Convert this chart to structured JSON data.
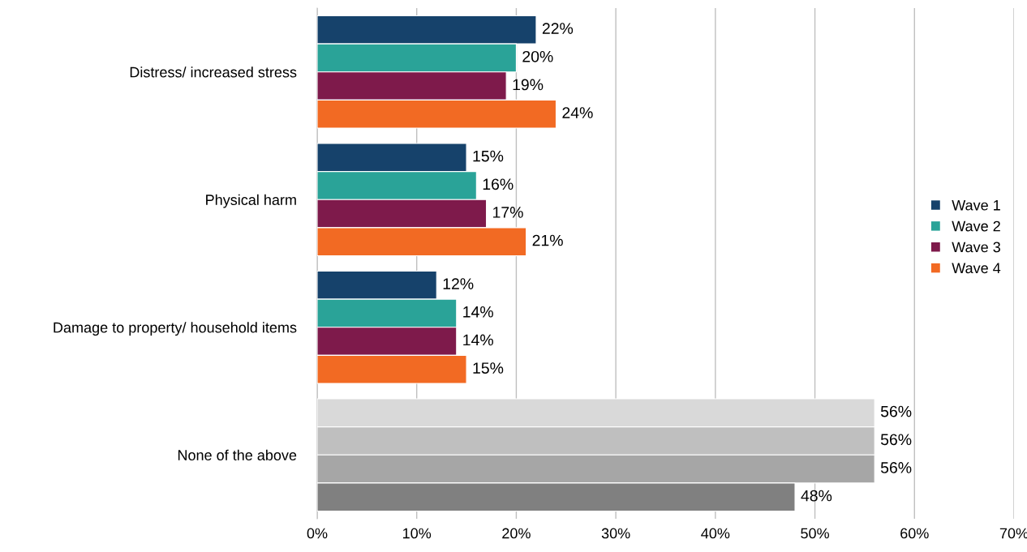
{
  "chart_data": {
    "type": "bar",
    "orientation": "horizontal",
    "categories": [
      "Distress/ increased stress",
      "Physical harm",
      "Damage to property/ household items",
      "None of the above"
    ],
    "series": [
      {
        "name": "Wave 1",
        "color": "#16426b",
        "colors": [
          "#16426b",
          "#16426b",
          "#16426b",
          "#d9d9d9"
        ],
        "values": [
          22,
          15,
          12,
          56
        ],
        "value_labels": [
          "22%",
          "15%",
          "12%",
          "56%"
        ]
      },
      {
        "name": "Wave 2",
        "color": "#2aa398",
        "colors": [
          "#2aa398",
          "#2aa398",
          "#2aa398",
          "#bfbfbf"
        ],
        "values": [
          20,
          16,
          14,
          56
        ],
        "value_labels": [
          "20%",
          "16%",
          "14%",
          "56%"
        ]
      },
      {
        "name": "Wave 3",
        "color": "#7e1a4b",
        "colors": [
          "#7e1a4b",
          "#7e1a4b",
          "#7e1a4b",
          "#a6a6a6"
        ],
        "values": [
          19,
          17,
          14,
          56
        ],
        "value_labels": [
          "19%",
          "17%",
          "14%",
          "56%"
        ]
      },
      {
        "name": "Wave 4",
        "color": "#f26a23",
        "colors": [
          "#f26a23",
          "#f26a23",
          "#f26a23",
          "#808080"
        ],
        "values": [
          24,
          21,
          15,
          48
        ],
        "value_labels": [
          "24%",
          "21%",
          "15%",
          "48%"
        ]
      }
    ],
    "xlim": [
      0,
      70
    ],
    "xticks": [
      {
        "value": 0,
        "label": "0%"
      },
      {
        "value": 10,
        "label": "10%"
      },
      {
        "value": 20,
        "label": "20%"
      },
      {
        "value": 30,
        "label": "30%"
      },
      {
        "value": 40,
        "label": "40%"
      },
      {
        "value": 50,
        "label": "50%"
      },
      {
        "value": 60,
        "label": "60%"
      },
      {
        "value": 70,
        "label": "70%"
      }
    ],
    "grid": "x",
    "legend": "right"
  }
}
